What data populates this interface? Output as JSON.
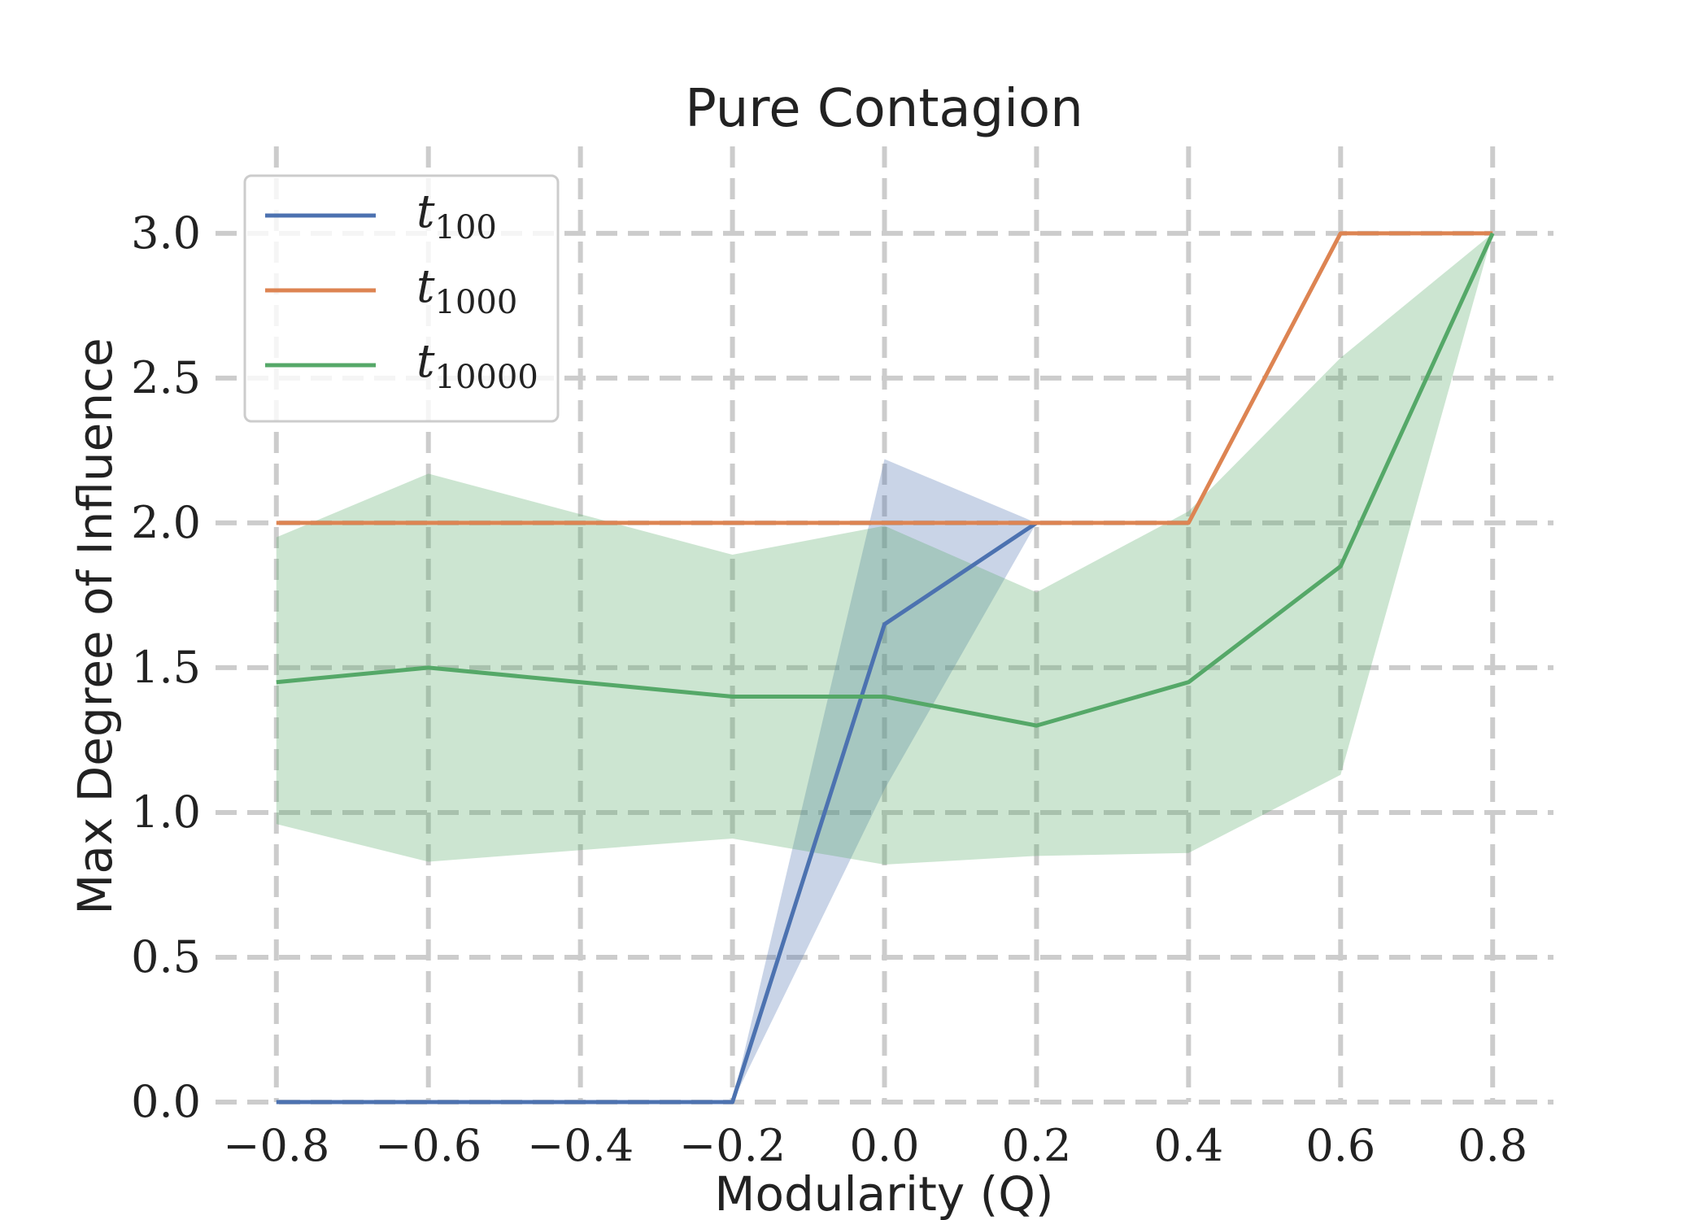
{
  "chart_data": {
    "type": "line",
    "title": "Pure Contagion",
    "xlabel": "Modularity (Q)",
    "ylabel": "Max Degree of Influence",
    "x": [
      -0.8,
      -0.6,
      -0.4,
      -0.2,
      0.0,
      0.2,
      0.4,
      0.6,
      0.8
    ],
    "xticks": [
      "−0.8",
      "−0.6",
      "−0.4",
      "−0.2",
      "0.0",
      "0.2",
      "0.4",
      "0.6",
      "0.8"
    ],
    "yticks": [
      "0.0",
      "0.5",
      "1.0",
      "1.5",
      "2.0",
      "2.5",
      "3.0"
    ],
    "xlim": [
      -0.88,
      0.88
    ],
    "ylim": [
      0,
      3.3
    ],
    "grid": true,
    "legend_position": "top-left",
    "series": [
      {
        "name": "t",
        "name_sub": "100",
        "color": "#4c72b0",
        "x": [
          -0.8,
          -0.6,
          -0.4,
          -0.2,
          0.0,
          0.2
        ],
        "values": [
          0,
          0,
          0,
          0,
          1.65,
          2.0
        ],
        "band_lower": [
          0,
          0,
          0,
          0,
          1.08,
          2.0
        ],
        "band_upper": [
          0,
          0,
          0,
          0,
          2.22,
          2.0
        ]
      },
      {
        "name": "t",
        "name_sub": "1000",
        "color": "#dd8452",
        "x": [
          -0.8,
          -0.6,
          -0.4,
          -0.2,
          0.0,
          0.2,
          0.4,
          0.6,
          0.8
        ],
        "values": [
          2.0,
          2.0,
          2.0,
          2.0,
          2.0,
          2.0,
          2.0,
          3.0,
          3.0
        ]
      },
      {
        "name": "t",
        "name_sub": "10000",
        "color": "#55a868",
        "x": [
          -0.8,
          -0.6,
          -0.4,
          -0.2,
          0.0,
          0.2,
          0.4,
          0.6,
          0.8
        ],
        "values": [
          1.45,
          1.5,
          1.45,
          1.4,
          1.4,
          1.3,
          1.45,
          1.85,
          3.0
        ],
        "band_lower": [
          0.96,
          0.83,
          0.87,
          0.91,
          0.82,
          0.85,
          0.86,
          1.13,
          3.0
        ],
        "band_upper": [
          1.95,
          2.17,
          2.03,
          1.89,
          1.99,
          1.76,
          2.04,
          2.57,
          3.0
        ]
      }
    ]
  }
}
